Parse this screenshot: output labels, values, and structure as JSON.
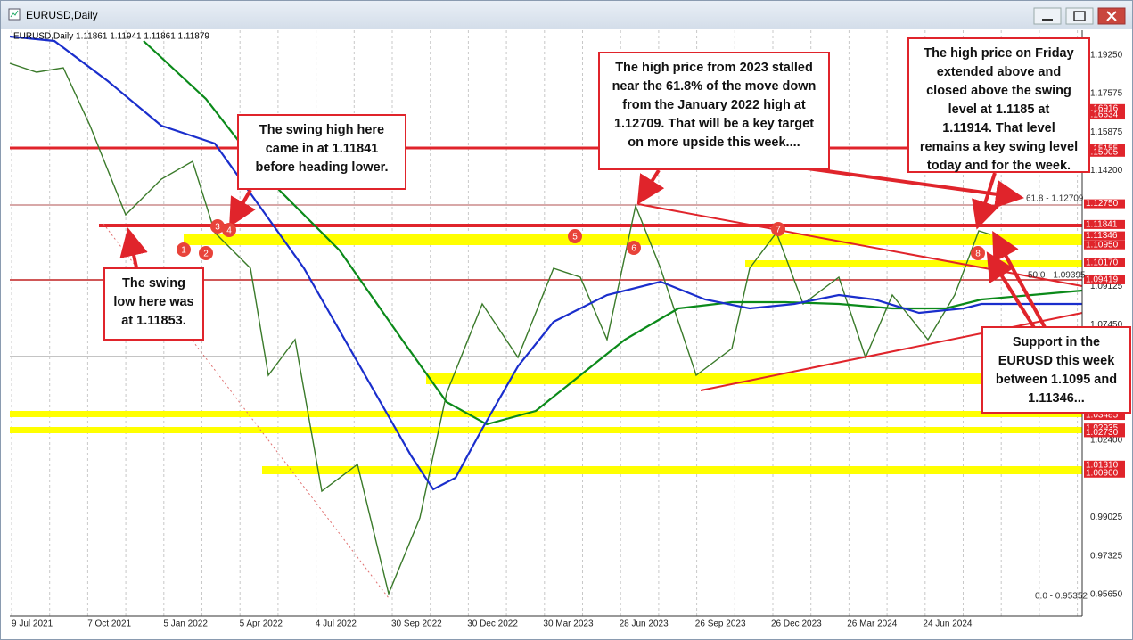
{
  "window": {
    "title": "EURUSD,Daily"
  },
  "chart": {
    "header": "EURUSD,Daily 1.11861 1.11941 1.11861 1.11879",
    "price_axis": [
      "1.19250",
      "1.17575",
      "1.15875",
      "1.14200",
      "1.09125",
      "1.07450",
      "1.02400",
      "0.99025",
      "0.97325",
      "0.95650"
    ],
    "highlighted_prices": [
      "1.16916",
      "1.16634",
      "1.15155",
      "1.15005",
      "1.12750",
      "1.11841",
      "1.11346",
      "1.10950",
      "1.10170",
      "1.09419",
      "1.03485",
      "1.02935",
      "1.02730",
      "1.01310",
      "1.00960"
    ],
    "dates": [
      "9 Jul 2021",
      "7 Oct 2021",
      "5 Jan 2022",
      "5 Apr 2022",
      "4 Jul 2022",
      "30 Sep 2022",
      "30 Dec 2022",
      "30 Mar 2023",
      "28 Jun 2023",
      "26 Sep 2023",
      "26 Dec 2023",
      "26 Mar 2024",
      "24 Jun 2024"
    ],
    "levels": [
      "61.8 - 1.12709",
      "50.0 - 1.09395",
      "0.0 - 0.95352"
    ],
    "markers": [
      "1",
      "2",
      "3",
      "4",
      "5",
      "6",
      "7",
      "8"
    ],
    "annotations": [
      {
        "lines": [
          "The swing high here",
          "came in at 1.11841",
          "before heading lower."
        ]
      },
      {
        "lines": [
          "The swing",
          "low here was",
          "at 1.11853."
        ]
      },
      {
        "lines": [
          "The high price from 2023 stalled",
          "near the 61.8% of the move down",
          "from the January 2022 high at",
          "1.12709.  That will be a key target",
          "on more upside this week...."
        ]
      },
      {
        "lines": [
          "The high price on Friday",
          "extended above and",
          "closed above the swing",
          "level at 1.1185 at",
          "1.11914. That level",
          "remains a key swing level",
          "today and for the week."
        ]
      },
      {
        "lines": [
          "Support in the",
          "EURUSD this week",
          "between 1.1095 and",
          "1.11346..."
        ]
      }
    ]
  }
}
